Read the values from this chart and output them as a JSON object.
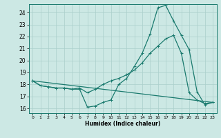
{
  "xlabel": "Humidex (Indice chaleur)",
  "ylabel": "",
  "bg_color": "#cce8e4",
  "line_color": "#1a7a6e",
  "grid_color": "#aacfcb",
  "xlim": [
    -0.5,
    23.5
  ],
  "ylim": [
    15.6,
    24.7
  ],
  "yticks": [
    16,
    17,
    18,
    19,
    20,
    21,
    22,
    23,
    24
  ],
  "xticks": [
    0,
    1,
    2,
    3,
    4,
    5,
    6,
    7,
    8,
    9,
    10,
    11,
    12,
    13,
    14,
    15,
    16,
    17,
    18,
    19,
    20,
    21,
    22,
    23
  ],
  "line1_x": [
    0,
    1,
    2,
    3,
    4,
    5,
    6,
    7,
    8,
    9,
    10,
    11,
    12,
    13,
    14,
    15,
    16,
    17,
    18,
    19,
    20,
    21,
    22,
    23
  ],
  "line1_y": [
    18.3,
    17.9,
    17.8,
    17.7,
    17.7,
    17.6,
    17.6,
    16.1,
    16.2,
    16.5,
    16.7,
    18.0,
    18.5,
    19.5,
    20.6,
    22.2,
    24.4,
    24.6,
    23.3,
    22.1,
    20.9,
    17.4,
    16.3,
    16.5
  ],
  "line2_x": [
    0,
    1,
    2,
    3,
    4,
    5,
    6,
    7,
    8,
    9,
    10,
    11,
    12,
    13,
    14,
    15,
    16,
    17,
    18,
    19,
    20,
    21,
    22,
    23
  ],
  "line2_y": [
    18.3,
    17.9,
    17.8,
    17.7,
    17.7,
    17.6,
    17.7,
    17.3,
    17.6,
    18.0,
    18.3,
    18.5,
    18.8,
    19.2,
    19.8,
    20.6,
    21.2,
    21.8,
    22.1,
    20.6,
    17.3,
    16.7,
    16.4,
    16.5
  ],
  "line3_x": [
    0,
    23
  ],
  "line3_y": [
    18.3,
    16.5
  ]
}
